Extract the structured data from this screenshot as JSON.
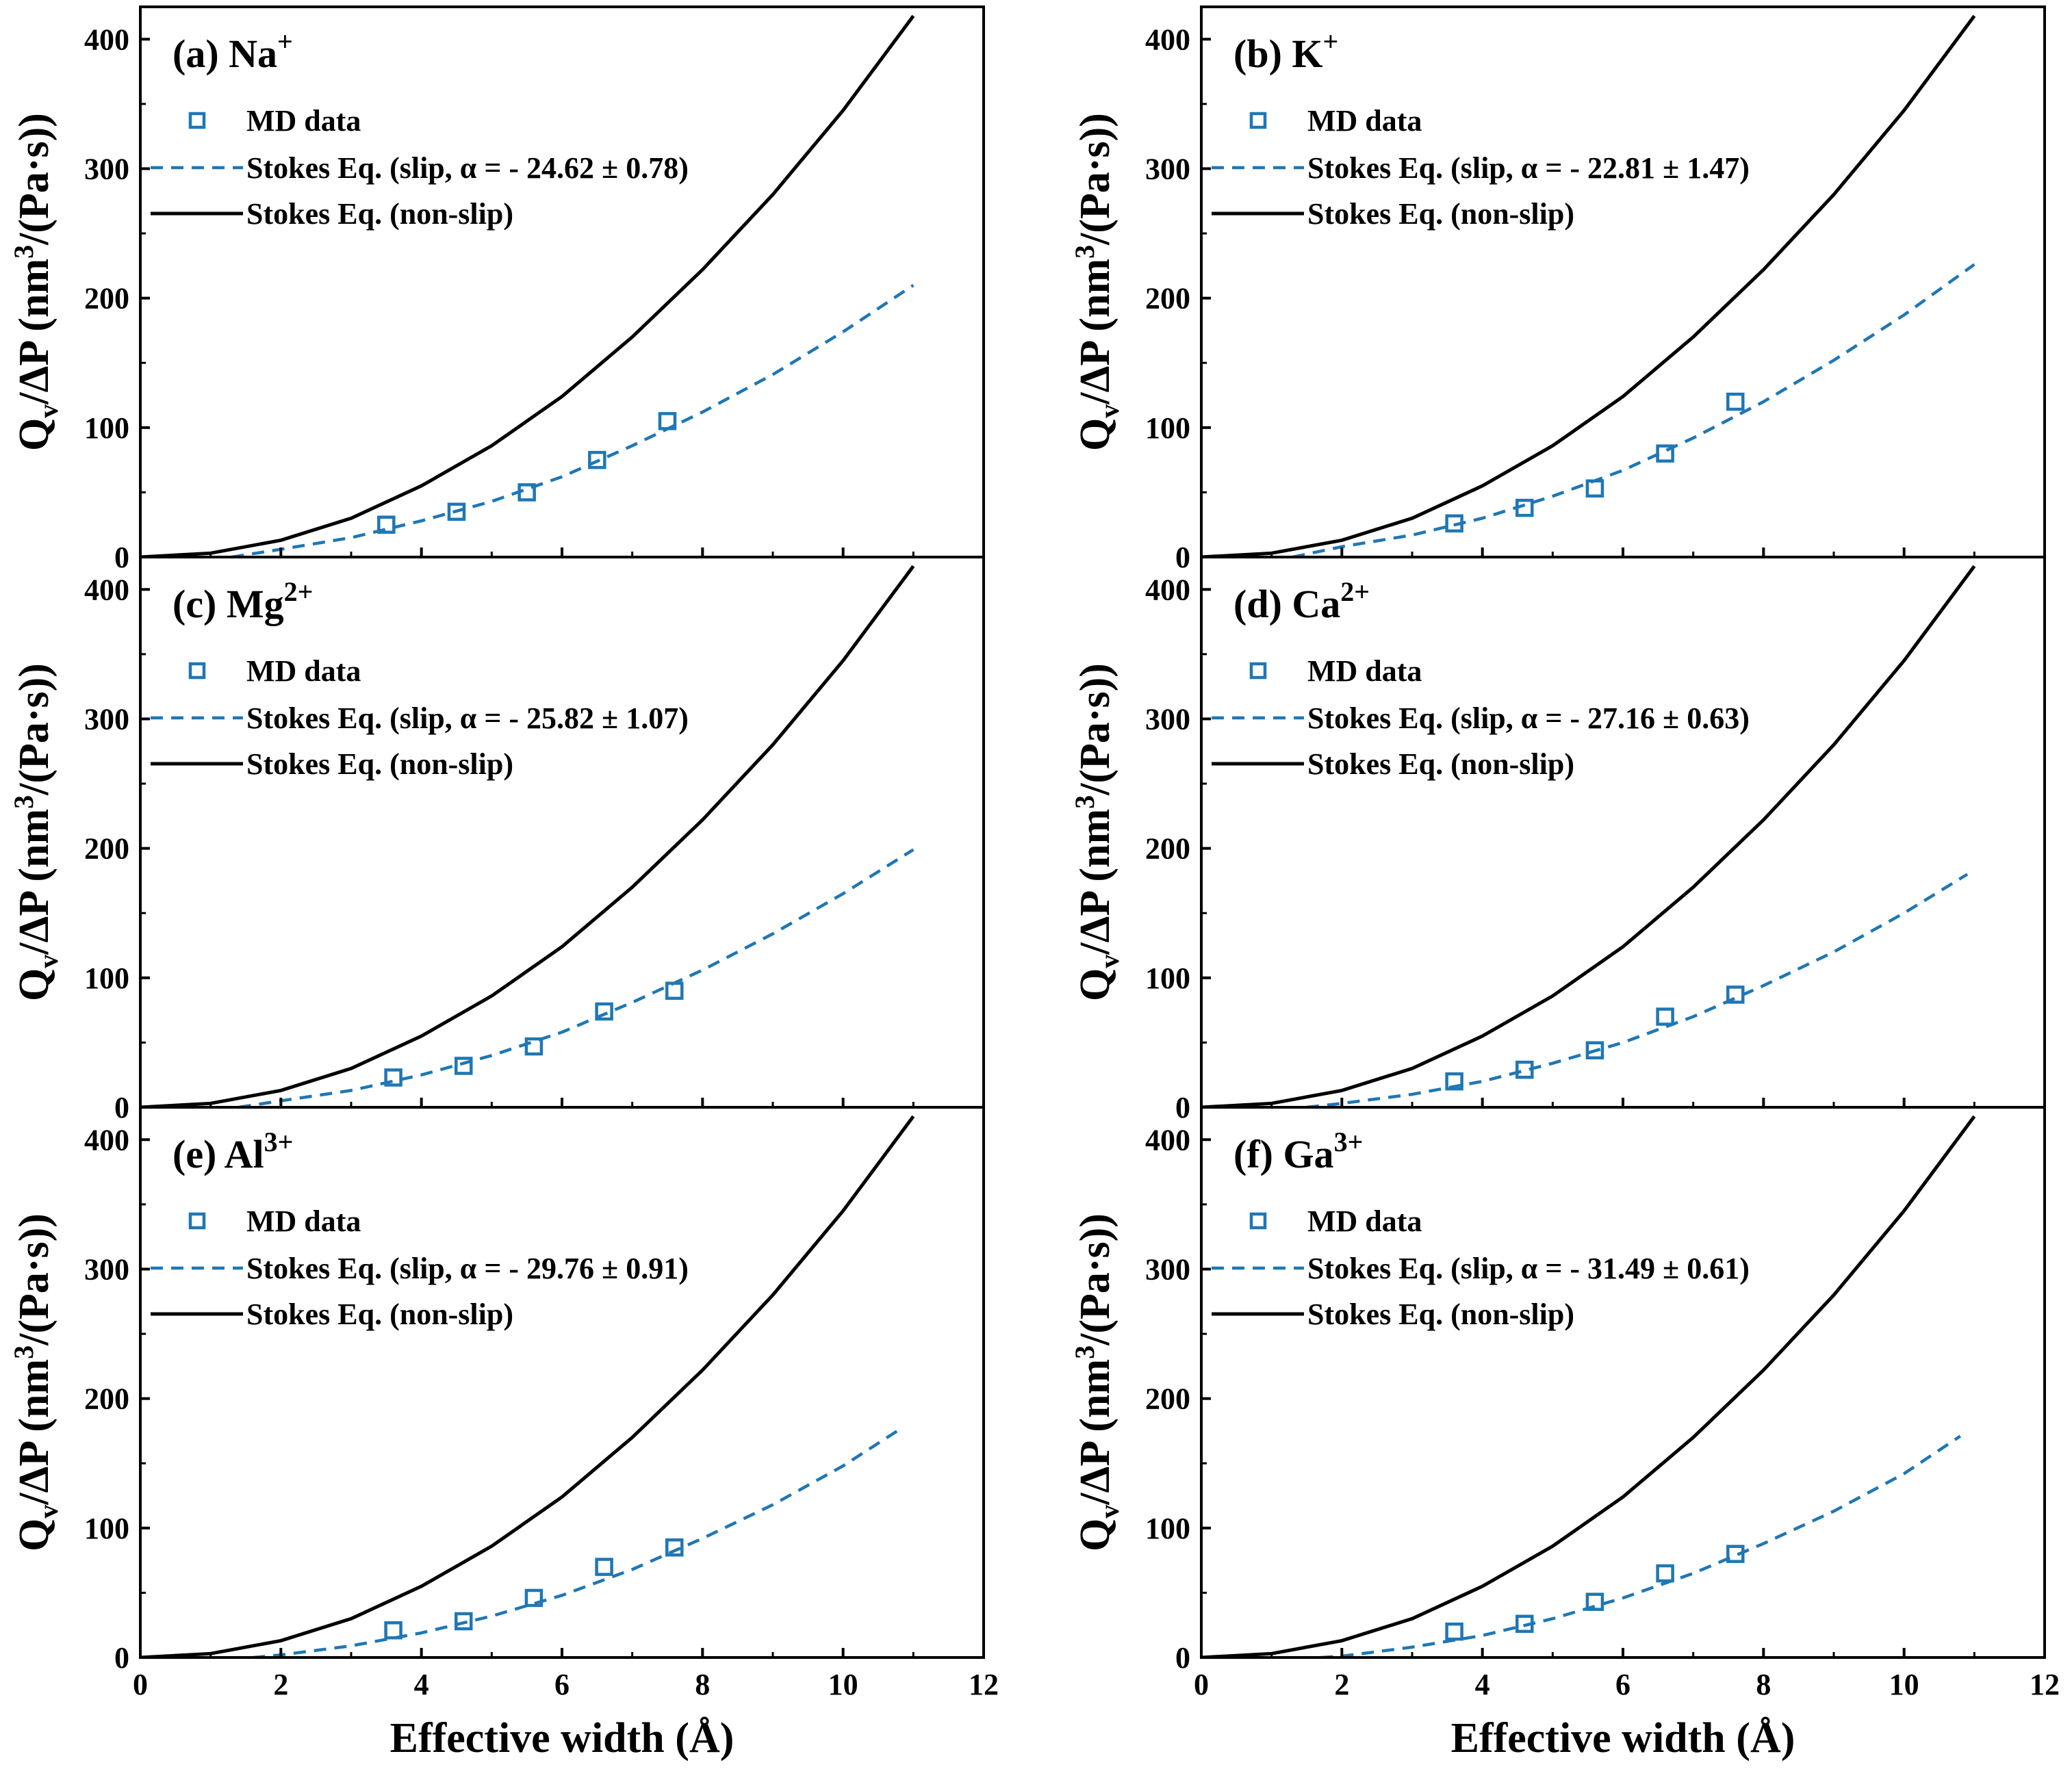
{
  "colors": {
    "md": "#1f77b4",
    "slip": "#1f77b4",
    "nonslip": "#000000",
    "axis": "#000000"
  },
  "chart_data": {
    "type": "line",
    "xlabel": "Effective width (Å)",
    "ylabel": {
      "q": "Q",
      "v": "v",
      "mid": "/ΔP (nm",
      "sup": "3",
      "tail": "/(Pa·s))"
    },
    "xlim": [
      0,
      12
    ],
    "ylim": [
      0,
      425
    ],
    "xticks": [
      "0",
      "2",
      "4",
      "6",
      "8",
      "10",
      "12"
    ],
    "yticks": [
      "0",
      "100",
      "200",
      "300",
      "400"
    ],
    "legend": {
      "md": "MD data",
      "nonslip": "Stokes Eq. (non-slip)"
    },
    "nonslip_curve": {
      "x": [
        0,
        1,
        2,
        3,
        4,
        5,
        6,
        7,
        8,
        9,
        10,
        11
      ],
      "y": [
        0,
        3,
        13,
        30,
        55,
        86,
        124,
        170,
        222,
        280,
        345,
        418
      ]
    },
    "panels": [
      {
        "id": "a",
        "label": "(a) Na",
        "charge": "+",
        "slip_legend": "Stokes Eq. (slip, α = - 24.62 ± 0.78)",
        "md": {
          "x": [
            3.5,
            4.5,
            5.5,
            6.5,
            7.5
          ],
          "y": [
            25,
            35,
            50,
            75,
            105
          ]
        },
        "slip": {
          "x": [
            1.3,
            2,
            3,
            4,
            5,
            6,
            7,
            8,
            9,
            10,
            11
          ],
          "y": [
            0,
            6,
            15,
            28,
            43,
            62,
            86,
            112,
            141,
            174,
            210
          ]
        }
      },
      {
        "id": "b",
        "label": "(b) K",
        "charge": "+",
        "slip_legend": "Stokes Eq. (slip, α = - 22.81 ± 1.47)",
        "md": {
          "x": [
            3.6,
            4.6,
            5.6,
            6.6,
            7.6
          ],
          "y": [
            26,
            38,
            53,
            80,
            120
          ]
        },
        "slip": {
          "x": [
            1.3,
            2,
            3,
            4,
            5,
            6,
            7,
            8,
            9,
            10,
            11
          ],
          "y": [
            0,
            8,
            17,
            30,
            47,
            67,
            92,
            120,
            152,
            187,
            226
          ]
        }
      },
      {
        "id": "c",
        "label": "(c) Mg",
        "charge": "2+",
        "slip_legend": "Stokes Eq. (slip, α = - 25.82 ± 1.07)",
        "md": {
          "x": [
            3.6,
            4.6,
            5.6,
            6.6,
            7.6
          ],
          "y": [
            23,
            32,
            47,
            74,
            90
          ]
        },
        "slip": {
          "x": [
            1.4,
            2,
            3,
            4,
            5,
            6,
            7,
            8,
            9,
            10,
            11
          ],
          "y": [
            0,
            5,
            13,
            25,
            40,
            58,
            81,
            106,
            134,
            165,
            199
          ]
        }
      },
      {
        "id": "d",
        "label": "(d) Ca",
        "charge": "2+",
        "slip_legend": "Stokes Eq. (slip, α = - 27.16 ± 0.63)",
        "md": {
          "x": [
            3.6,
            4.6,
            5.6,
            6.6,
            7.6
          ],
          "y": [
            20,
            29,
            44,
            70,
            87
          ]
        },
        "slip": {
          "x": [
            1.5,
            2,
            3,
            4,
            5,
            6,
            7,
            8,
            9,
            10,
            10.9
          ],
          "y": [
            0,
            3,
            10,
            20,
            34,
            50,
            70,
            94,
            120,
            150,
            180
          ]
        }
      },
      {
        "id": "e",
        "label": "(e) Al",
        "charge": "3+",
        "slip_legend": "Stokes Eq. (slip, α = - 29.76 ± 0.91)",
        "md": {
          "x": [
            3.6,
            4.6,
            5.6,
            6.6,
            7.6
          ],
          "y": [
            21,
            28,
            46,
            70,
            85
          ]
        },
        "slip": {
          "x": [
            1.6,
            2,
            3,
            4,
            5,
            6,
            7,
            8,
            9,
            10,
            10.8
          ],
          "y": [
            0,
            2,
            9,
            19,
            32,
            48,
            68,
            92,
            118,
            148,
            176
          ]
        }
      },
      {
        "id": "f",
        "label": "(f) Ga",
        "charge": "3+",
        "slip_legend": "Stokes Eq. (slip, α = - 31.49 ± 0.61)",
        "md": {
          "x": [
            3.6,
            4.6,
            5.6,
            6.6,
            7.6
          ],
          "y": [
            20,
            26,
            43,
            65,
            80
          ]
        },
        "slip": {
          "x": [
            1.7,
            2,
            3,
            4,
            5,
            6,
            7,
            8,
            9,
            10,
            10.8
          ],
          "y": [
            0,
            1,
            8,
            17,
            30,
            46,
            65,
            88,
            113,
            142,
            171
          ]
        }
      }
    ]
  }
}
